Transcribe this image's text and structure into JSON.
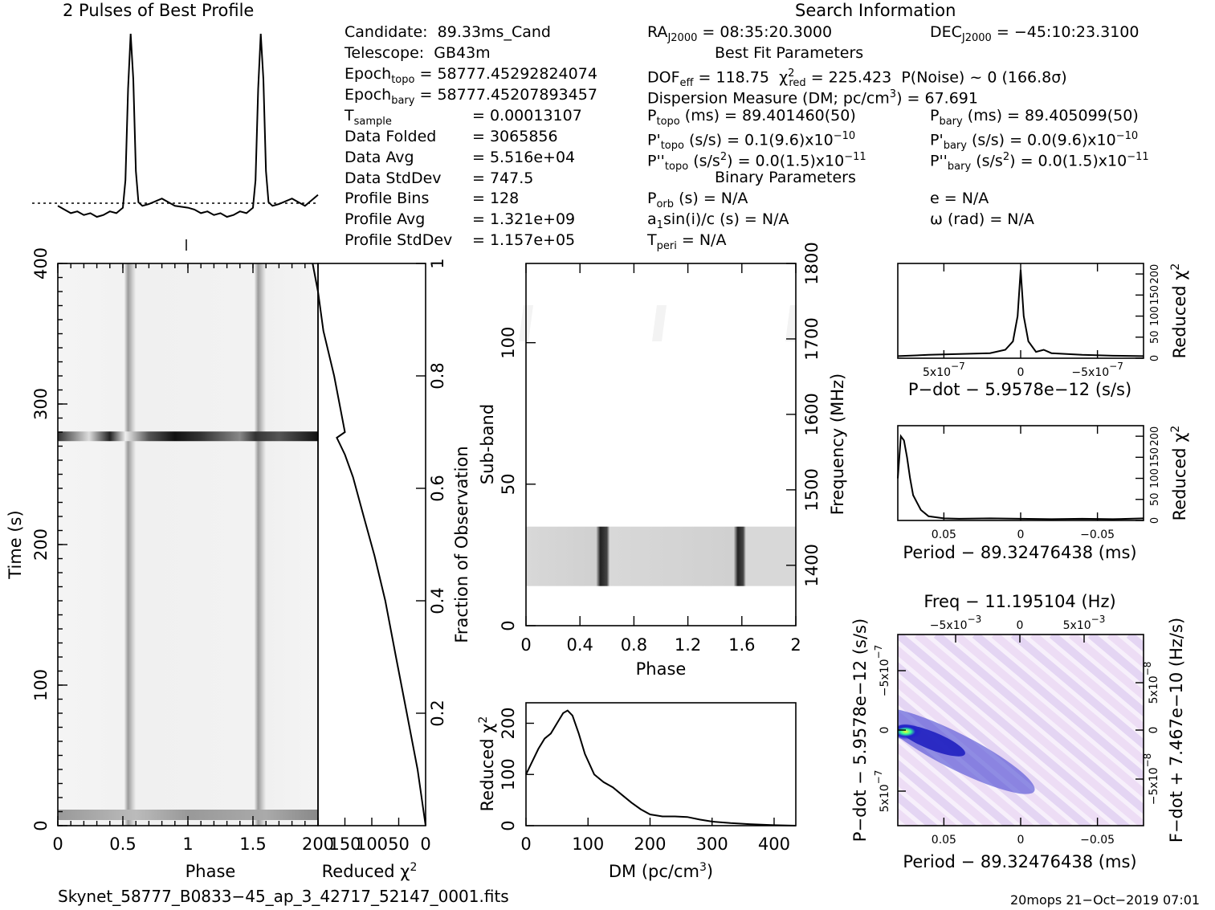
{
  "header": {
    "profile_title": "2 Pulses of Best Profile",
    "search_title": "Search Information"
  },
  "info_left": [
    {
      "label": "Candidate:",
      "value": "89.33ms_Cand"
    },
    {
      "label": "Telescope:",
      "value": "GB43m"
    },
    {
      "label": "Epoch",
      "sub": "topo",
      "value": "= 58777.45292824074"
    },
    {
      "label": "Epoch",
      "sub": "bary",
      "value": "= 58777.45207893457"
    },
    {
      "label": "T",
      "sub": "sample",
      "value": "=   0.00013107"
    },
    {
      "label": "Data Folded",
      "value": "=   3065856"
    },
    {
      "label": "Data Avg",
      "value": "=   5.516e+04"
    },
    {
      "label": "Data StdDev",
      "value": "=   747.5"
    },
    {
      "label": "Profile Bins",
      "value": "=   128"
    },
    {
      "label": "Profile Avg",
      "value": "=   1.321e+09"
    },
    {
      "label": "Profile StdDev",
      "value": "=   1.157e+05"
    }
  ],
  "info_right": {
    "ra": "RA",
    "ra_sub": "J2000",
    "ra_value": "= 08:35:20.3000",
    "dec": "DEC",
    "dec_sub": "J2000",
    "dec_value": "= −45:10:23.3100",
    "best_fit": "Best Fit Parameters",
    "dof": "DOF",
    "dof_sub": "eff",
    "dof_value": "= 118.75",
    "chi": "χ",
    "chi_sup": "2",
    "chi_sub": "red",
    "chi_value": "= 225.423",
    "noise": "P(Noise) ~ 0    (166.8σ)",
    "dm_line": "Dispersion Measure (DM; pc/cm",
    "dm_sup": "3",
    "dm_value": ") = 67.691",
    "ptopo": "P",
    "ptopo_sub": "topo",
    "ptopo_value": "(ms) =  89.401460(50)",
    "pbary": "P",
    "pbary_sub": "bary",
    "pbary_value": "(ms) =  89.405099(50)",
    "pdtopo": "P'",
    "pdtopo_sub": "topo",
    "pdtopo_value": "(s/s) =  0.1(9.6)x10",
    "pdtopo_exp": "−10",
    "pdbary": "P'",
    "pdbary_sub": "bary",
    "pdbary_value": "(s/s) = 0.0(9.6)x10",
    "pdbary_exp": "−10",
    "pddtopo": "P''",
    "pddtopo_sub": "topo",
    "pddtopo_value": "(s/s",
    "pddtopo_sup": "2",
    "pddtopo_value2": ") = 0.0(1.5)x10",
    "pddtopo_exp": "−11",
    "pddbary": "P''",
    "pddbary_sub": "bary",
    "pddbary_value": "(s/s",
    "pddbary_sup": "2",
    "pddbary_value2": ") = 0.0(1.5)x10",
    "pddbary_exp": "−11",
    "binary": "Binary Parameters",
    "porb": "P",
    "porb_sub": "orb",
    "porb_value": "(s) = N/A",
    "ecc": "e = N/A",
    "asini": "a",
    "asini_sub": "1",
    "asini_value": "sin(i)/c (s) = N/A",
    "omega": "ω (rad) = N/A",
    "tperi": "T",
    "tperi_sub": "peri",
    "tperi_value": "= N/A"
  },
  "footer": {
    "filename": "Skynet_58777_B0833−45_ap_3_42717_52147_0001.fits",
    "stamp": "20mops 21−Oct−2019 07:01"
  },
  "chart_data": [
    {
      "id": "profile",
      "type": "line",
      "title": "2 Pulses of Best Profile",
      "x": [
        0,
        0.05,
        0.1,
        0.15,
        0.2,
        0.25,
        0.3,
        0.35,
        0.4,
        0.45,
        0.5,
        0.52,
        0.54,
        0.56,
        0.58,
        0.6,
        0.62,
        0.65,
        0.7,
        0.8,
        0.9,
        1.0,
        1.05,
        1.1,
        1.15,
        1.2,
        1.25,
        1.3,
        1.35,
        1.4,
        1.45,
        1.5,
        1.52,
        1.54,
        1.56,
        1.58,
        1.6,
        1.62,
        1.65,
        1.7,
        1.8,
        1.9,
        2.0
      ],
      "values": [
        0.06,
        0.04,
        0.02,
        0.03,
        0.01,
        0.02,
        0.0,
        0.01,
        0.03,
        0.02,
        0.05,
        0.2,
        0.7,
        1.0,
        0.75,
        0.25,
        0.08,
        0.06,
        0.07,
        0.1,
        0.06,
        0.05,
        0.04,
        0.02,
        0.03,
        0.01,
        0.02,
        0.0,
        0.01,
        0.03,
        0.02,
        0.05,
        0.2,
        0.7,
        1.0,
        0.75,
        0.25,
        0.08,
        0.06,
        0.07,
        0.1,
        0.06,
        0.12
      ],
      "xlim": [
        0,
        2
      ]
    },
    {
      "id": "time-phase",
      "type": "heatmap",
      "xlabel": "Phase",
      "ylabel": "Time (s)",
      "x_ticks": [
        "0",
        "0.5",
        "1",
        "1.5"
      ],
      "x_tick_values": [
        0,
        0.5,
        1,
        1.5
      ],
      "y_ticks": [
        "0",
        "100",
        "200",
        "300",
        "400"
      ],
      "y_tick_values": [
        0,
        100,
        200,
        300,
        400
      ],
      "xlim": [
        0,
        2
      ],
      "ylim": [
        0,
        400
      ],
      "pulse_phases": [
        0.56,
        1.56
      ],
      "dark_band_time": 277,
      "bright_band_time": 8
    },
    {
      "id": "chi-time",
      "type": "line",
      "xlabel": "Reduced χ",
      "xlabel_sup": "2",
      "ylabel": "Fraction of Observation",
      "x_ticks": [
        "200",
        "150",
        "100",
        "50",
        "0"
      ],
      "y_ticks": [
        "0.2",
        "0.4",
        "0.6",
        "0.8",
        "1"
      ],
      "y_tick_values": [
        0.2,
        0.4,
        0.6,
        0.8,
        1.0
      ],
      "chi": [
        0,
        15,
        35,
        55,
        75,
        95,
        115,
        135,
        150,
        160,
        165,
        150,
        170,
        190,
        200,
        210
      ],
      "frac": [
        0.0,
        0.1,
        0.2,
        0.3,
        0.4,
        0.48,
        0.55,
        0.62,
        0.66,
        0.68,
        0.69,
        0.7,
        0.8,
        0.88,
        0.95,
        1.0
      ],
      "xlim": [
        200,
        0
      ],
      "ylim": [
        0,
        1
      ]
    },
    {
      "id": "subband-phase",
      "type": "heatmap",
      "xlabel": "Phase",
      "ylabel": "Sub-band",
      "y2label": "Frequency (MHz)",
      "x_ticks": [
        "0",
        "0.4",
        "0.8",
        "1.2",
        "1.6",
        "2"
      ],
      "x_tick_values": [
        0,
        0.4,
        0.8,
        1.2,
        1.6,
        2.0
      ],
      "y_ticks": [
        "0",
        "50",
        "100"
      ],
      "y_tick_values": [
        0,
        50,
        100
      ],
      "y2_ticks": [
        "1400",
        "1500",
        "1600",
        "1700",
        "1800"
      ],
      "y2_tick_values": [
        1400,
        1500,
        1600,
        1700,
        1800
      ],
      "xlim": [
        0,
        2
      ],
      "ylim": [
        0,
        128
      ],
      "band_range": [
        14,
        35
      ],
      "pulse_phases": [
        0.57,
        1.57
      ]
    },
    {
      "id": "dm-chi",
      "type": "line",
      "xlabel": "DM (pc/cm",
      "xlabel_sup": "3",
      "xlabel_end": ")",
      "ylabel": "Reduced χ",
      "ylabel_sup": "2",
      "x_ticks": [
        "0",
        "100",
        "200",
        "300",
        "400"
      ],
      "x_tick_values": [
        0,
        100,
        200,
        300,
        400
      ],
      "y_ticks": [
        "0",
        "100",
        "200"
      ],
      "y_tick_values": [
        0,
        100,
        200
      ],
      "x": [
        0,
        10,
        20,
        30,
        40,
        50,
        60,
        67,
        75,
        85,
        95,
        110,
        125,
        140,
        155,
        170,
        185,
        200,
        220,
        240,
        260,
        280,
        300,
        330,
        360,
        400,
        435
      ],
      "values": [
        100,
        125,
        150,
        170,
        180,
        200,
        220,
        225,
        215,
        180,
        140,
        100,
        85,
        75,
        60,
        45,
        32,
        22,
        18,
        18,
        17,
        12,
        8,
        5,
        3,
        1,
        0
      ],
      "xlim": [
        0,
        435
      ],
      "ylim": [
        0,
        240
      ]
    },
    {
      "id": "pdot-chi",
      "type": "line",
      "xlabel": "P−dot − 5.9578e−12 (s/s)",
      "ylabel": "Reduced χ",
      "ylabel_sup": "2",
      "x_ticks": [
        "5x10",
        "0",
        "−5x10"
      ],
      "x_tick_exp": "−7",
      "x_tick_values": [
        5e-07,
        0,
        -5e-07
      ],
      "y_ticks": [
        "0",
        "50",
        "100",
        "150",
        "200"
      ],
      "y_tick_values": [
        0,
        50,
        100,
        150,
        200
      ],
      "x": [
        8e-07,
        6e-07,
        4e-07,
        2e-07,
        1e-07,
        5e-08,
        2e-08,
        0,
        -2e-08,
        -5e-08,
        -1e-07,
        -1.5e-07,
        -2e-07,
        -4e-07,
        -6e-07,
        -8e-07
      ],
      "values": [
        5,
        8,
        10,
        12,
        20,
        40,
        100,
        210,
        100,
        40,
        15,
        20,
        12,
        8,
        6,
        5
      ],
      "xlim": [
        8e-07,
        -8e-07
      ],
      "ylim": [
        0,
        225
      ]
    },
    {
      "id": "period-chi",
      "type": "line",
      "xlabel": "Period − 89.32476438 (ms)",
      "ylabel": "Reduced χ",
      "ylabel_sup": "2",
      "x_ticks": [
        "0.05",
        "0",
        "−0.05"
      ],
      "x_tick_values": [
        0.05,
        0,
        -0.05
      ],
      "y_ticks": [
        "0",
        "50",
        "100",
        "150",
        "200"
      ],
      "y_tick_values": [
        0,
        50,
        100,
        150,
        200
      ],
      "x": [
        0.08,
        0.078,
        0.076,
        0.074,
        0.072,
        0.07,
        0.065,
        0.06,
        0.05,
        0.04,
        0.02,
        0,
        -0.02,
        -0.04,
        -0.06,
        -0.08
      ],
      "values": [
        100,
        200,
        190,
        150,
        100,
        60,
        25,
        10,
        5,
        4,
        5,
        4,
        3,
        4,
        3,
        5
      ],
      "xlim": [
        0.08,
        -0.08
      ],
      "ylim": [
        0,
        225
      ]
    },
    {
      "id": "ppdot-map",
      "type": "heatmap",
      "title": "Freq − 11.195104 (Hz)",
      "xlabel": "Period − 89.32476438 (ms)",
      "ylabel": "P−dot − 5.9578e−12 (s/s)",
      "y2label": "F−dot + 7.467e−10 (Hz/s)",
      "x_ticks": [
        "0.05",
        "0",
        "−0.05"
      ],
      "x_tick_values": [
        0.05,
        0,
        -0.05
      ],
      "top_ticks": [
        "−5x10",
        "0",
        "5x10"
      ],
      "top_tick_exp": "−3",
      "y_ticks": [
        "−5x10",
        "0",
        "5x10"
      ],
      "y_tick_exp": "−7",
      "y2_ticks": [
        "5x10",
        "0",
        "−5x10"
      ],
      "y2_tick_exp": "−8",
      "xlim": [
        0.08,
        -0.08
      ],
      "peak": [
        0.075,
        0
      ]
    }
  ]
}
